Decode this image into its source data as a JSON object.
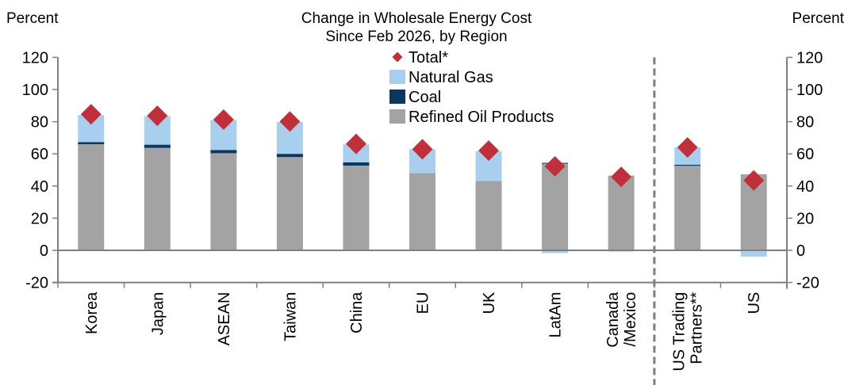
{
  "chart_data": {
    "type": "bar",
    "stacked": true,
    "title": "Change in Wholesale Energy Cost",
    "subtitle": "Since Feb 2026, by Region",
    "ylabel_left": "Percent",
    "ylabel_right": "Percent",
    "xlabel": "",
    "ylim": [
      -20,
      120
    ],
    "yticks": [
      120,
      100,
      80,
      60,
      40,
      20,
      0,
      -20
    ],
    "grid": false,
    "legend_position": "top-center",
    "categories": [
      "Korea",
      "Japan",
      "ASEAN",
      "Taiwan",
      "China",
      "EU",
      "UK",
      "LatAm",
      "Canada\n/Mexico",
      "US Trading\nPartners**",
      "US"
    ],
    "divider_after_category": "Canada\n/Mexico",
    "series": [
      {
        "name": "Refined Oil Products",
        "kind": "bar",
        "color": "#A3A3A3",
        "values": [
          66.0,
          63.7,
          60.4,
          58.0,
          52.7,
          48.1,
          43.2,
          53.9,
          46.5,
          52.6,
          47.3
        ]
      },
      {
        "name": "Coal",
        "kind": "bar",
        "color": "#0B3660",
        "values": [
          1.3,
          2.0,
          2.0,
          2.0,
          2.0,
          0.0,
          0.0,
          0.5,
          0.0,
          0.6,
          0.0
        ]
      },
      {
        "name": "Natural Gas",
        "kind": "bar",
        "color": "#A9CFEF",
        "values": [
          16.8,
          17.7,
          18.6,
          19.8,
          11.1,
          14.8,
          18.5,
          -1.7,
          -0.8,
          10.8,
          -3.9
        ]
      },
      {
        "name": "Total*",
        "kind": "marker",
        "marker": "diamond",
        "color": "#C0303A",
        "values": [
          84.6,
          83.7,
          81.3,
          80.1,
          66.2,
          62.9,
          62.0,
          52.2,
          45.7,
          64.0,
          43.5
        ]
      }
    ],
    "legend": [
      {
        "name": "Total*",
        "symbol": "diamond",
        "color": "#C0303A"
      },
      {
        "name": "Natural Gas",
        "symbol": "square",
        "color": "#A9CFEF"
      },
      {
        "name": "Coal",
        "symbol": "square",
        "color": "#0B3660"
      },
      {
        "name": "Refined Oil Products",
        "symbol": "square",
        "color": "#A3A3A3"
      }
    ],
    "colors": {
      "axis": "#7F7F7F",
      "divider": "#7F7F7F"
    }
  }
}
